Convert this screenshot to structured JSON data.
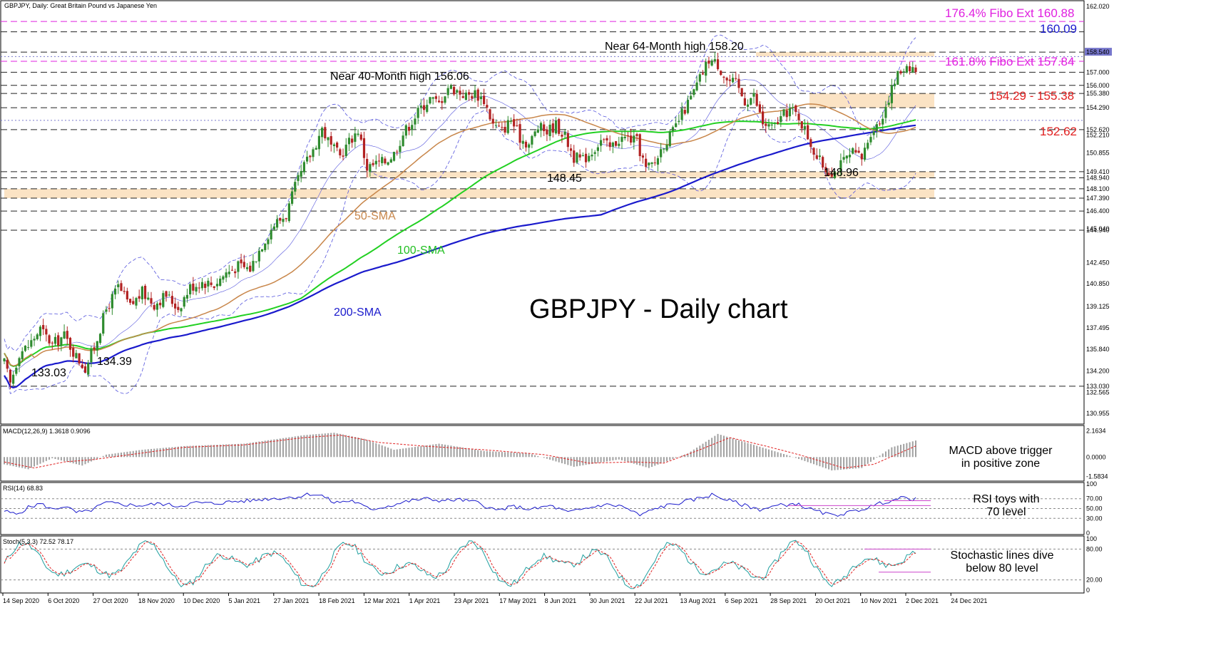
{
  "header": {
    "symbol_line": "GBPJPY, Daily:  Great Britain Pound vs Japanese Yen"
  },
  "main_title": "GBPJPY - Daily chart",
  "colors": {
    "bull_candle": "#2e8b2e",
    "bear_candle": "#b22222",
    "sma50": "#c8864a",
    "sma100": "#22d022",
    "sma200": "#1a1acc",
    "bollinger": "#5555dd",
    "fibo": "#e020e0",
    "resistance_text": "#e02020",
    "zone_fill": "#fbe3c4",
    "grid_dash": "#222222",
    "macd_hist": "#a0a0a0",
    "macd_signal": "#e02020",
    "rsi_line": "#1a1acc",
    "stoch_main": "#20a0a0",
    "stoch_signal": "#e02020",
    "trend_line": "#cc44cc"
  },
  "chart_data": [
    {
      "type": "candlestick",
      "panel": "price",
      "x_tick_labels": [
        "14 Sep 2020",
        "6 Oct 2020",
        "27 Oct 2020",
        "18 Nov 2020",
        "10 Dec 2020",
        "5 Jan 2021",
        "27 Jan 2021",
        "18 Feb 2021",
        "12 Mar 2021",
        "1 Apr 2021",
        "23 Apr 2021",
        "17 May 2021",
        "8 Jun 2021",
        "30 Jun 2021",
        "22 Jul 2021",
        "13 Aug 2021",
        "6 Sep 2021",
        "28 Sep 2021",
        "20 Oct 2021",
        "10 Nov 2021",
        "2 Dec 2021",
        "24 Dec 2021"
      ],
      "y_tick_labels": [
        "162.020",
        "158.540",
        "157.000",
        "156.000",
        "155.380",
        "154.290",
        "152.620",
        "152.210",
        "150.855",
        "149.410",
        "148.940",
        "148.100",
        "147.390",
        "146.400",
        "145.040",
        "144.940",
        "142.450",
        "140.850",
        "139.125",
        "137.495",
        "135.840",
        "134.200",
        "133.030",
        "132.565",
        "130.955"
      ],
      "y_range": [
        130.3,
        162.3
      ],
      "close_path": [
        [
          0,
          134.8
        ],
        [
          2,
          133.2
        ],
        [
          5,
          135.6
        ],
        [
          8,
          136.1
        ],
        [
          12,
          137.4
        ],
        [
          16,
          136.2
        ],
        [
          20,
          136.9
        ],
        [
          24,
          135.3
        ],
        [
          27,
          134.4
        ],
        [
          30,
          136.0
        ],
        [
          34,
          138.9
        ],
        [
          38,
          140.6
        ],
        [
          42,
          139.1
        ],
        [
          46,
          140.2
        ],
        [
          50,
          139.3
        ],
        [
          54,
          140.0
        ],
        [
          58,
          139.0
        ],
        [
          62,
          140.6
        ],
        [
          66,
          141.0
        ],
        [
          70,
          140.8
        ],
        [
          74,
          141.7
        ],
        [
          78,
          142.2
        ],
        [
          82,
          142.0
        ],
        [
          86,
          143.9
        ],
        [
          90,
          145.4
        ],
        [
          94,
          146.1
        ],
        [
          97,
          148.2
        ],
        [
          100,
          149.8
        ],
        [
          103,
          151.1
        ],
        [
          106,
          152.7
        ],
        [
          109,
          151.3
        ],
        [
          112,
          150.6
        ],
        [
          115,
          151.7
        ],
        [
          118,
          152.6
        ],
        [
          121,
          149.7
        ],
        [
          124,
          150.0
        ],
        [
          127,
          150.2
        ],
        [
          130,
          150.8
        ],
        [
          133,
          152.3
        ],
        [
          136,
          153.3
        ],
        [
          139,
          154.3
        ],
        [
          142,
          155.0
        ],
        [
          145,
          154.6
        ],
        [
          148,
          155.9
        ],
        [
          151,
          155.6
        ],
        [
          154,
          155.2
        ],
        [
          157,
          155.4
        ],
        [
          160,
          154.9
        ],
        [
          163,
          153.0
        ],
        [
          166,
          152.5
        ],
        [
          169,
          153.4
        ],
        [
          172,
          152.0
        ],
        [
          175,
          151.5
        ],
        [
          178,
          152.8
        ],
        [
          181,
          152.5
        ],
        [
          184,
          153.0
        ],
        [
          187,
          152.1
        ],
        [
          190,
          150.5
        ],
        [
          193,
          150.3
        ],
        [
          196,
          151.0
        ],
        [
          199,
          151.8
        ],
        [
          202,
          151.2
        ],
        [
          205,
          151.9
        ],
        [
          208,
          152.0
        ],
        [
          211,
          151.7
        ],
        [
          214,
          149.6
        ],
        [
          217,
          150.1
        ],
        [
          220,
          151.6
        ],
        [
          223,
          152.4
        ],
        [
          226,
          153.8
        ],
        [
          229,
          155.0
        ],
        [
          232,
          156.5
        ],
        [
          235,
          158.0
        ],
        [
          238,
          157.6
        ],
        [
          241,
          156.4
        ],
        [
          244,
          156.1
        ],
        [
          247,
          154.8
        ],
        [
          250,
          155.2
        ],
        [
          253,
          153.1
        ],
        [
          256,
          152.7
        ],
        [
          259,
          153.5
        ],
        [
          262,
          154.2
        ],
        [
          265,
          153.6
        ],
        [
          268,
          152.1
        ],
        [
          271,
          150.5
        ],
        [
          274,
          149.6
        ],
        [
          277,
          149.4
        ],
        [
          280,
          150.2
        ],
        [
          283,
          150.8
        ],
        [
          286,
          150.4
        ],
        [
          289,
          152.5
        ],
        [
          292,
          153.2
        ],
        [
          295,
          155.1
        ],
        [
          298,
          156.8
        ],
        [
          301,
          157.6
        ],
        [
          304,
          157.2
        ]
      ],
      "horizontal_levels": [
        {
          "value": 160.88,
          "label": "176.4% Fibo Ext 160.88",
          "style": "fibo"
        },
        {
          "value": 160.09,
          "label": "160.09",
          "style": "blue"
        },
        {
          "value": 157.84,
          "label": "161.8% Fibo Ext 157.84",
          "style": "fibo"
        },
        {
          "value": 152.62,
          "label": "152.62",
          "style": "red"
        }
      ],
      "zones": [
        {
          "from": 158.2,
          "to": 158.54,
          "label": ""
        },
        {
          "from": 154.29,
          "to": 155.38,
          "label": "154.29 - 155.38"
        },
        {
          "from": 148.94,
          "to": 149.41,
          "label": ""
        },
        {
          "from": 147.39,
          "to": 148.1,
          "label": ""
        }
      ],
      "annotations": [
        {
          "text": "Near 64-Month high 158.20"
        },
        {
          "text": "Near 40-Month high 156.06"
        },
        {
          "text": "148.45"
        },
        {
          "text": "148.96"
        },
        {
          "text": "50-SMA"
        },
        {
          "text": "100-SMA"
        },
        {
          "text": "200-SMA"
        },
        {
          "text": "133.03"
        },
        {
          "text": "134.39"
        }
      ]
    },
    {
      "type": "bar",
      "panel": "macd",
      "title": "MACD(12,26,9) 1.3618 0.9096",
      "y_tick_labels": [
        "2.1634",
        "0.0000",
        "-1.5834"
      ],
      "y_range": [
        -1.8,
        2.3
      ],
      "annotation": [
        "MACD above trigger",
        "in positive zone"
      ],
      "histogram_path": [
        [
          0,
          -0.6
        ],
        [
          8,
          -1.0
        ],
        [
          16,
          -0.1
        ],
        [
          26,
          -0.7
        ],
        [
          34,
          0.2
        ],
        [
          46,
          0.6
        ],
        [
          60,
          0.9
        ],
        [
          80,
          1.1
        ],
        [
          100,
          1.8
        ],
        [
          110,
          2.0
        ],
        [
          120,
          1.5
        ],
        [
          130,
          0.6
        ],
        [
          145,
          1.1
        ],
        [
          160,
          0.5
        ],
        [
          175,
          0.3
        ],
        [
          190,
          -0.8
        ],
        [
          205,
          -0.2
        ],
        [
          215,
          -0.9
        ],
        [
          228,
          0.3
        ],
        [
          238,
          1.9
        ],
        [
          250,
          1.0
        ],
        [
          262,
          0.1
        ],
        [
          276,
          -1.1
        ],
        [
          286,
          -0.9
        ],
        [
          296,
          0.8
        ],
        [
          304,
          1.36
        ]
      ],
      "signal_path": [
        [
          0,
          -0.4
        ],
        [
          10,
          -0.9
        ],
        [
          20,
          -0.4
        ],
        [
          30,
          -0.2
        ],
        [
          45,
          0.3
        ],
        [
          60,
          0.8
        ],
        [
          80,
          1.0
        ],
        [
          100,
          1.6
        ],
        [
          112,
          1.8
        ],
        [
          125,
          1.2
        ],
        [
          140,
          0.9
        ],
        [
          160,
          0.6
        ],
        [
          180,
          0.2
        ],
        [
          195,
          -0.5
        ],
        [
          210,
          -0.4
        ],
        [
          220,
          -0.5
        ],
        [
          232,
          0.6
        ],
        [
          242,
          1.6
        ],
        [
          254,
          0.9
        ],
        [
          265,
          0.2
        ],
        [
          280,
          -0.9
        ],
        [
          290,
          -0.6
        ],
        [
          304,
          0.91
        ]
      ]
    },
    {
      "type": "line",
      "panel": "rsi",
      "title": "RSI(14) 68.83",
      "y_tick_labels": [
        "100",
        "70.00",
        "50.00",
        "30.00",
        "0"
      ],
      "y_range": [
        0,
        100
      ],
      "annotation": [
        "RSI toys with",
        "70 level"
      ],
      "values_path": [
        [
          0,
          45
        ],
        [
          4,
          38
        ],
        [
          8,
          52
        ],
        [
          12,
          60
        ],
        [
          16,
          48
        ],
        [
          20,
          55
        ],
        [
          24,
          42
        ],
        [
          28,
          44
        ],
        [
          34,
          62
        ],
        [
          40,
          58
        ],
        [
          46,
          56
        ],
        [
          52,
          60
        ],
        [
          58,
          55
        ],
        [
          64,
          62
        ],
        [
          70,
          60
        ],
        [
          76,
          64
        ],
        [
          82,
          66
        ],
        [
          88,
          70
        ],
        [
          94,
          72
        ],
        [
          98,
          74
        ],
        [
          102,
          80
        ],
        [
          106,
          76
        ],
        [
          110,
          62
        ],
        [
          116,
          66
        ],
        [
          122,
          48
        ],
        [
          128,
          55
        ],
        [
          134,
          64
        ],
        [
          140,
          70
        ],
        [
          146,
          66
        ],
        [
          152,
          68
        ],
        [
          158,
          62
        ],
        [
          164,
          46
        ],
        [
          170,
          54
        ],
        [
          176,
          48
        ],
        [
          182,
          56
        ],
        [
          188,
          42
        ],
        [
          194,
          50
        ],
        [
          200,
          58
        ],
        [
          206,
          55
        ],
        [
          212,
          36
        ],
        [
          218,
          52
        ],
        [
          224,
          60
        ],
        [
          230,
          68
        ],
        [
          236,
          78
        ],
        [
          240,
          70
        ],
        [
          246,
          58
        ],
        [
          252,
          48
        ],
        [
          258,
          56
        ],
        [
          264,
          60
        ],
        [
          270,
          46
        ],
        [
          276,
          36
        ],
        [
          282,
          42
        ],
        [
          288,
          52
        ],
        [
          294,
          64
        ],
        [
          300,
          72
        ],
        [
          304,
          68.83
        ]
      ]
    },
    {
      "type": "line",
      "panel": "stochastic",
      "title": "Stoch(5,3,3) 72.52 78.17",
      "y_tick_labels": [
        "100",
        "80.00",
        "20.00",
        "0"
      ],
      "y_range": [
        0,
        100
      ],
      "annotation": [
        "Stochastic lines dive",
        "below 80 level"
      ]
    }
  ]
}
